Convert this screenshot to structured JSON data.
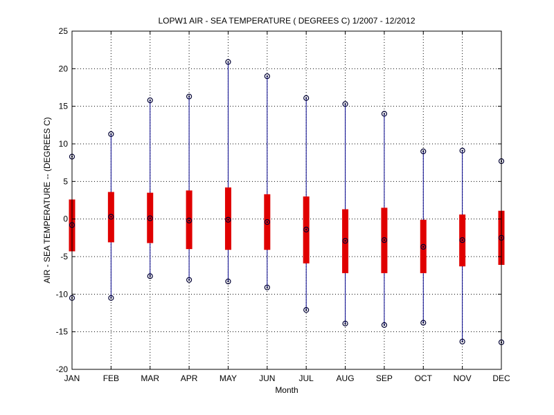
{
  "chart_data": {
    "type": "boxplot",
    "title": "LOPW1  AIR - SEA TEMPERATURE ( DEGREES C) 1/2007 - 12/2012",
    "xlabel": "Month",
    "ylabel": "AIR - SEA TEMPERATURE -- (DEGREES C)",
    "categories": [
      "JAN",
      "FEB",
      "MAR",
      "APR",
      "MAY",
      "JUN",
      "JUL",
      "AUG",
      "SEP",
      "OCT",
      "NOV",
      "DEC"
    ],
    "ylim": [
      -20,
      25
    ],
    "yticks": [
      -20,
      -15,
      -10,
      -5,
      0,
      5,
      10,
      15,
      20,
      25
    ],
    "grid": true,
    "series": [
      {
        "max": [
          8.3,
          11.3,
          15.8,
          16.3,
          20.9,
          19.0,
          16.1,
          15.3,
          14.0,
          9.0,
          9.1,
          7.7
        ],
        "q3": [
          2.6,
          3.6,
          3.5,
          3.8,
          4.2,
          3.3,
          3.0,
          1.3,
          1.5,
          -0.1,
          0.6,
          1.1
        ],
        "median": [
          -0.8,
          0.3,
          0.1,
          -0.2,
          -0.1,
          -0.4,
          -1.4,
          -2.9,
          -2.8,
          -3.7,
          -2.8,
          -2.5
        ],
        "q1": [
          -4.3,
          -3.1,
          -3.2,
          -4.0,
          -4.1,
          -4.1,
          -5.9,
          -7.2,
          -7.2,
          -7.2,
          -6.3,
          -6.1
        ],
        "min": [
          -10.5,
          -10.5,
          -7.6,
          -8.1,
          -8.3,
          -9.1,
          -12.1,
          -13.9,
          -14.1,
          -13.8,
          -16.3,
          -16.4
        ]
      }
    ],
    "colors": {
      "box": "#e00000",
      "whisker": "#00008b",
      "marker": "#000033",
      "grid": "#000000",
      "axis": "#000000"
    }
  }
}
